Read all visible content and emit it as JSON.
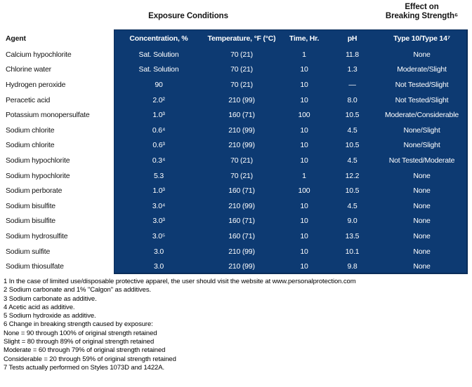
{
  "colors": {
    "table_blue": "#0d3a72",
    "table_border": "#0a2d5a",
    "header_text": "#ffffff",
    "body_text": "#141414"
  },
  "table": {
    "exposure_title": "Exposure Conditions",
    "effect_title_line1": "Effect on",
    "effect_title_line2": "Breaking Strength⁶",
    "agent_header": "Agent",
    "columns": [
      "Concentration, %",
      "Temperature, °F (°C)",
      "Time, Hr.",
      "pH",
      "Type 10/Type 14⁷"
    ],
    "rows": [
      {
        "agent": "Calcium hypochlorite",
        "concentration": "Sat. Solution",
        "temperature": "70 (21)",
        "time": "1",
        "ph": "11.8",
        "effect": "None"
      },
      {
        "agent": "Chlorine water",
        "concentration": "Sat. Solution",
        "temperature": "70 (21)",
        "time": "10",
        "ph": "1.3",
        "effect": "Moderate/Slight"
      },
      {
        "agent": "Hydrogen peroxide",
        "concentration": "90",
        "temperature": "70 (21)",
        "time": "10",
        "ph": "—",
        "effect": "Not Tested/Slight"
      },
      {
        "agent": "Peracetic acid",
        "concentration": "2.0²",
        "temperature": "210 (99)",
        "time": "10",
        "ph": "8.0",
        "effect": "Not Tested/Slight"
      },
      {
        "agent": "Potassium monopersulfate",
        "concentration": "1.0³",
        "temperature": "160 (71)",
        "time": "100",
        "ph": "10.5",
        "effect": "Moderate/Considerable"
      },
      {
        "agent": "Sodium chlorite",
        "concentration": "0.6⁴",
        "temperature": "210 (99)",
        "time": "10",
        "ph": "4.5",
        "effect": "None/Slight"
      },
      {
        "agent": "Sodium chlorite",
        "concentration": "0.6³",
        "temperature": "210 (99)",
        "time": "10",
        "ph": "10.5",
        "effect": "None/Slight"
      },
      {
        "agent": "Sodium hypochlorite",
        "concentration": "0.3⁴",
        "temperature": "70 (21)",
        "time": "10",
        "ph": "4.5",
        "effect": "Not Tested/Moderate"
      },
      {
        "agent": "Sodium hypochlorite",
        "concentration": "5.3",
        "temperature": "70 (21)",
        "time": "1",
        "ph": "12.2",
        "effect": "None"
      },
      {
        "agent": "Sodium perborate",
        "concentration": "1.0³",
        "temperature": "160 (71)",
        "time": "100",
        "ph": "10.5",
        "effect": "None"
      },
      {
        "agent": "Sodium bisulfite",
        "concentration": "3.0⁴",
        "temperature": "210 (99)",
        "time": "10",
        "ph": "4.5",
        "effect": "None"
      },
      {
        "agent": "Sodium bisulfite",
        "concentration": "3.0³",
        "temperature": "160 (71)",
        "time": "10",
        "ph": "9.0",
        "effect": "None"
      },
      {
        "agent": "Sodium hydrosulfite",
        "concentration": "3.0⁵",
        "temperature": "160 (71)",
        "time": "10",
        "ph": "13.5",
        "effect": "None"
      },
      {
        "agent": "Sodium sulfite",
        "concentration": "3.0",
        "temperature": "210 (99)",
        "time": "10",
        "ph": "10.1",
        "effect": "None"
      },
      {
        "agent": "Sodium thiosulfate",
        "concentration": "3.0",
        "temperature": "210 (99)",
        "time": "10",
        "ph": "9.8",
        "effect": "None"
      }
    ]
  },
  "footnotes": [
    "1 In the case of limited use/disposable protective apparel, the user should visit the website at www.personalprotection.com",
    "2 Sodium carbonate and 1% \"Calgon\" as additives.",
    "3 Sodium carbonate as additive.",
    "4 Acetic acid as additive.",
    "5 Sodium hydroxide as additive.",
    "6 Change in breaking strength caused by exposure:",
    "None = 90 through 100% of original strength retained",
    "Slight = 80 through 89% of original strength retained",
    "Moderate = 60 through 79% of original strength retained",
    "Considerable = 20 through 59% of original strength retained",
    "7 Tests actually performed on Styles 1073D and 1422A."
  ]
}
